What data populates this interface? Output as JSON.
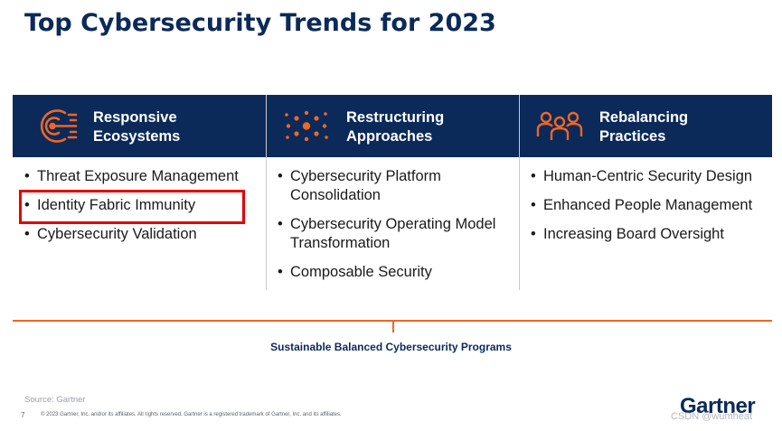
{
  "title": "Top Cybersecurity Trends for 2023",
  "columns": [
    {
      "heading": "Responsive\nEcosystems",
      "icon": "radar-target-icon",
      "items": [
        "Threat Exposure Management",
        "Identity Fabric Immunity",
        "Cybersecurity Validation"
      ]
    },
    {
      "heading": "Restructuring\nApproaches",
      "icon": "network-dots-icon",
      "items": [
        "Cybersecurity Platform Consolidation",
        "Cybersecurity Operating Model Transformation",
        "Composable Security"
      ]
    },
    {
      "heading": "Rebalancing\nPractices",
      "icon": "people-group-icon",
      "items": [
        "Human-Centric Security Design",
        "Enhanced People Management",
        "Increasing Board Oversight"
      ]
    }
  ],
  "highlighted_item": "Identity Fabric Immunity",
  "bottom_label": "Sustainable Balanced Cybersecurity Programs",
  "footer": {
    "source": "Source: Gartner",
    "page_number": "7",
    "copyright": "© 2023 Gartner, Inc. and/or its affiliates. All rights reserved. Gartner is a registered trademark of Gartner, Inc. and its affiliates.",
    "logo": "Gartner",
    "watermark": "CSDN @wumheat"
  },
  "colors": {
    "navy": "#0b2a5a",
    "orange": "#f26522",
    "highlight_red": "#e60000"
  }
}
